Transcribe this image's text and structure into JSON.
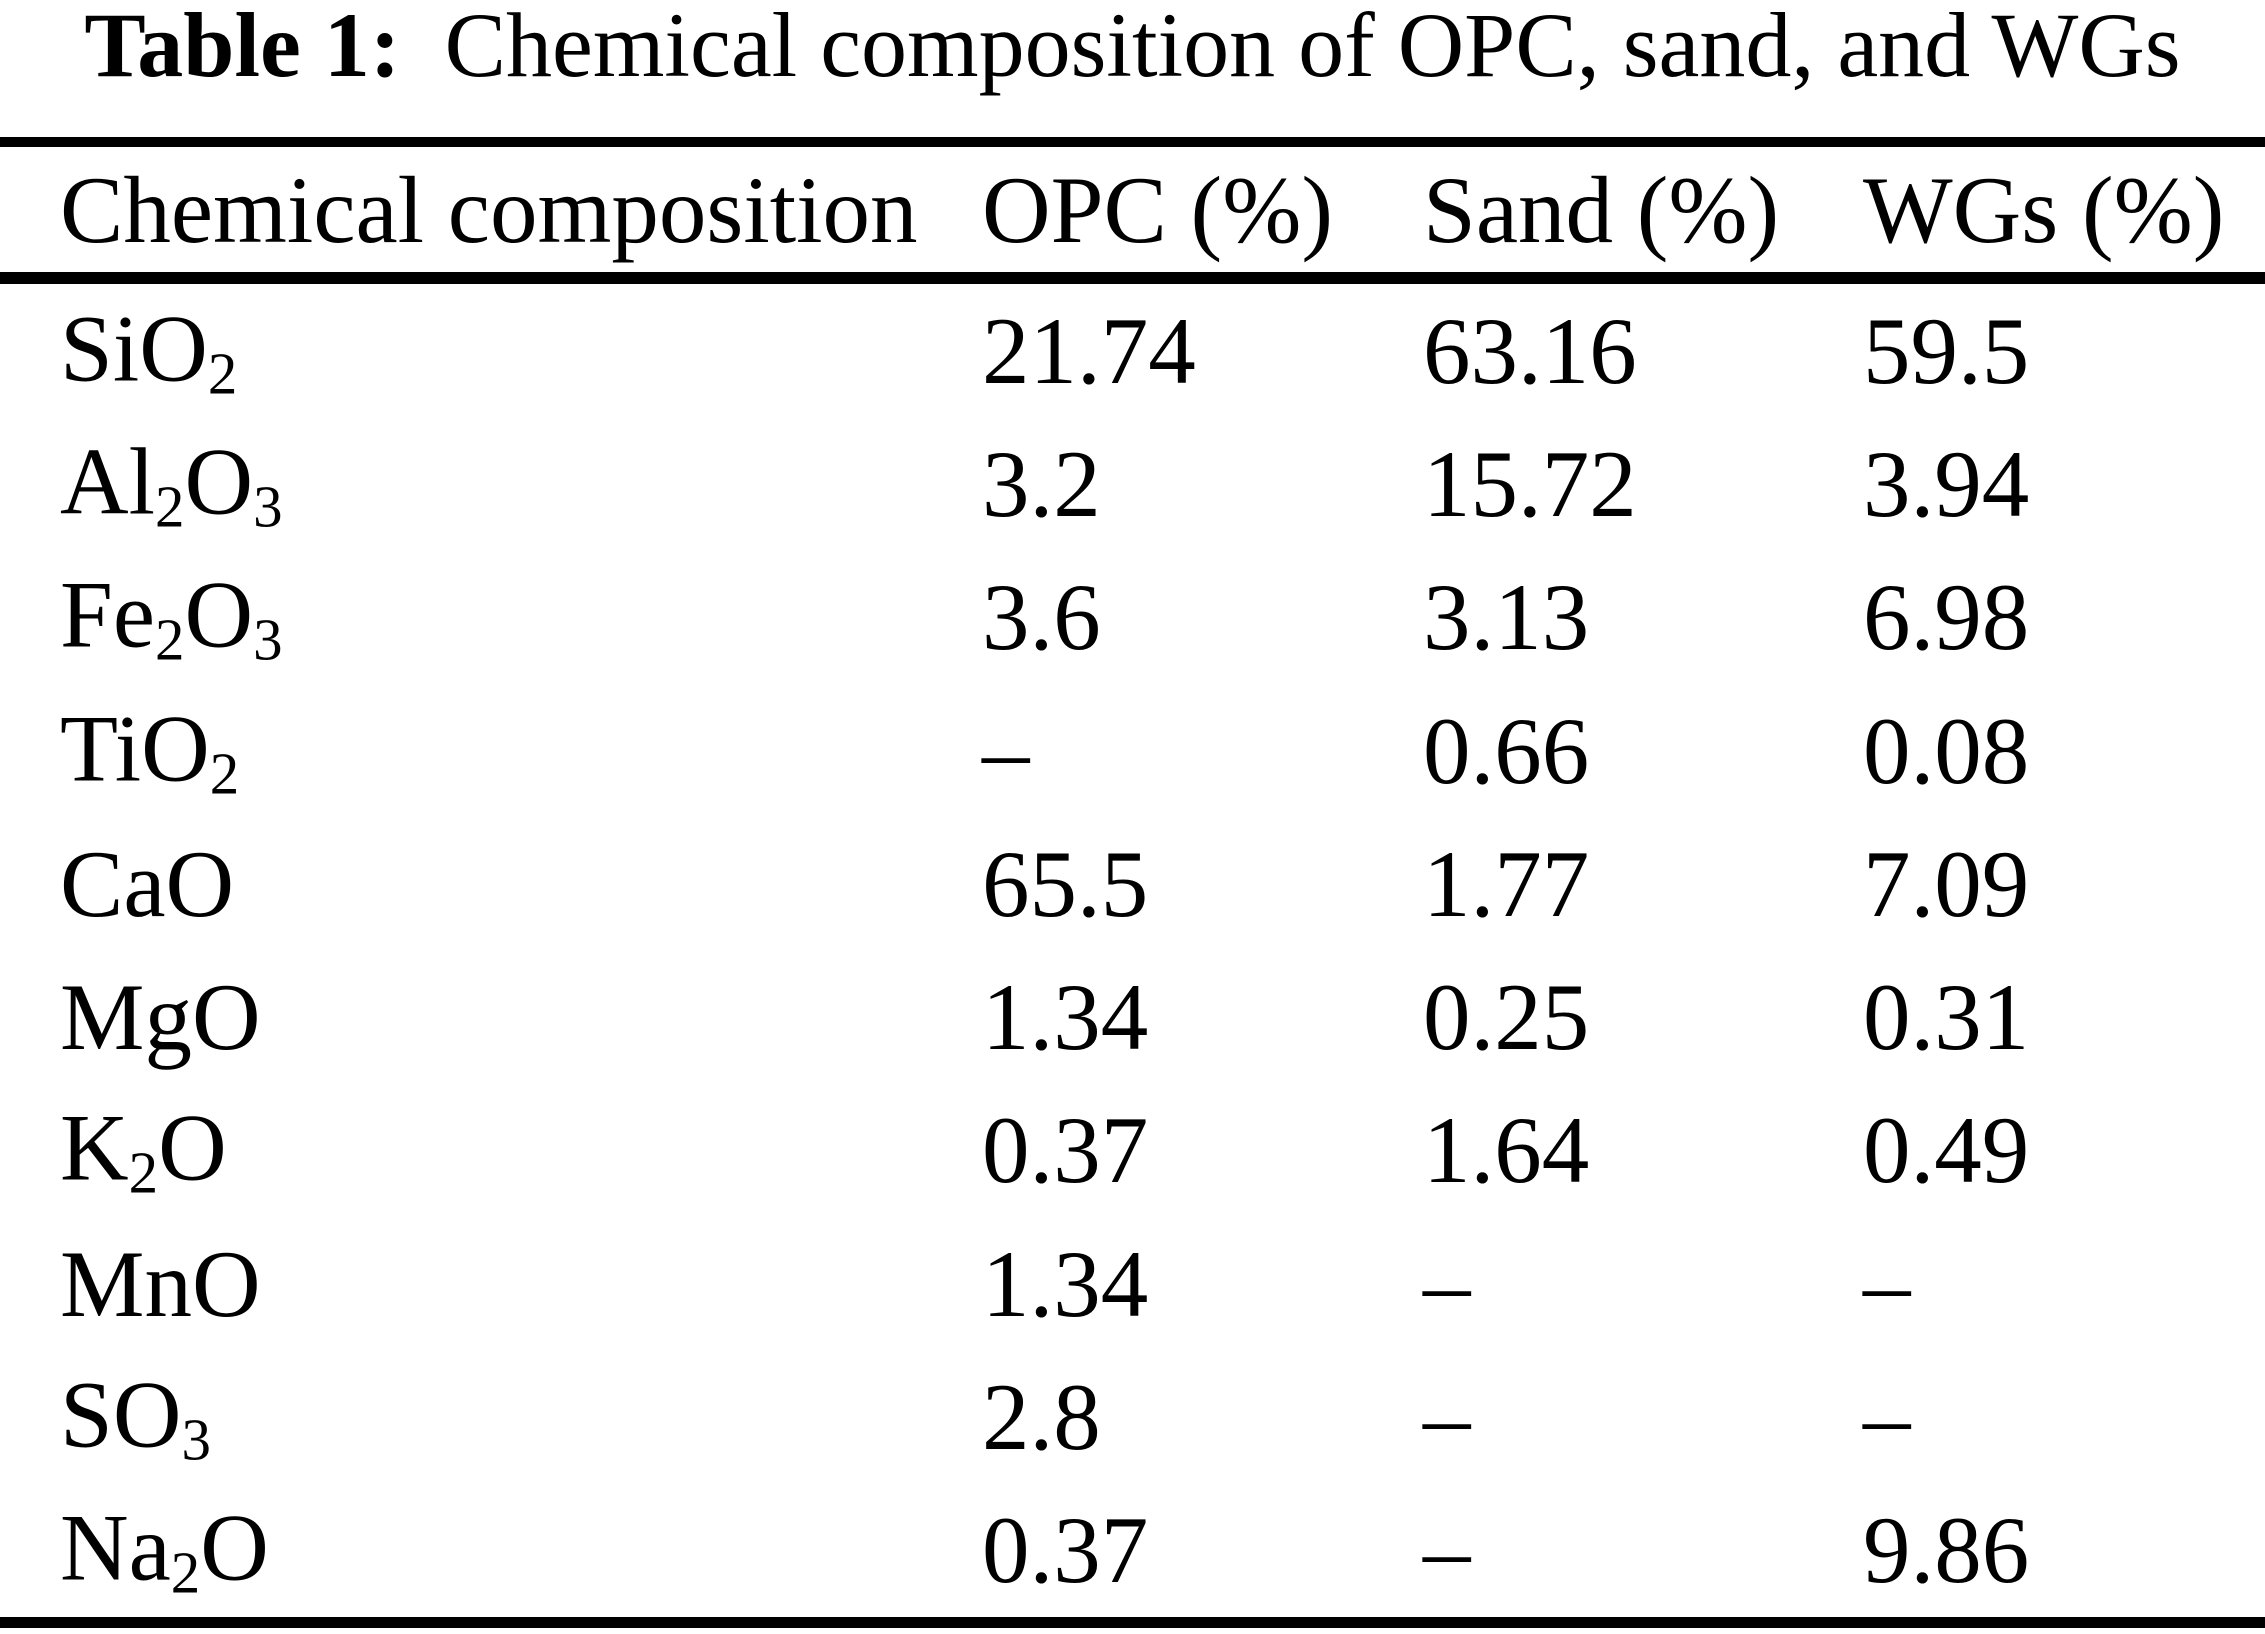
{
  "title": {
    "label": "Table 1:",
    "text": "Chemical composition of OPC, sand, and WGs"
  },
  "table": {
    "header": {
      "composition": "Chemical composition",
      "opc": "OPC (%)",
      "sand": "Sand (%)",
      "wgs": "WGs (%)"
    },
    "no_data_marker": "–",
    "rows": [
      {
        "name": "SiO2",
        "formula": [
          {
            "t": "SiO"
          },
          {
            "s": "2"
          }
        ],
        "opc": "21.74",
        "sand": "63.16",
        "wgs": "59.5"
      },
      {
        "name": "Al2O3",
        "formula": [
          {
            "t": "Al"
          },
          {
            "s": "2"
          },
          {
            "t": "O"
          },
          {
            "s": "3"
          }
        ],
        "opc": "3.2",
        "sand": "15.72",
        "wgs": "3.94"
      },
      {
        "name": "Fe2O3",
        "formula": [
          {
            "t": "Fe"
          },
          {
            "s": "2"
          },
          {
            "t": "O"
          },
          {
            "s": "3"
          }
        ],
        "opc": "3.6",
        "sand": "3.13",
        "wgs": "6.98"
      },
      {
        "name": "TiO2",
        "formula": [
          {
            "t": "TiO"
          },
          {
            "s": "2"
          }
        ],
        "opc": "–",
        "sand": "0.66",
        "wgs": "0.08"
      },
      {
        "name": "CaO",
        "formula": [
          {
            "t": "CaO"
          }
        ],
        "opc": "65.5",
        "sand": "1.77",
        "wgs": "7.09"
      },
      {
        "name": "MgO",
        "formula": [
          {
            "t": "MgO"
          }
        ],
        "opc": "1.34",
        "sand": "0.25",
        "wgs": "0.31"
      },
      {
        "name": "K2O",
        "formula": [
          {
            "t": "K"
          },
          {
            "s": "2"
          },
          {
            "t": "O"
          }
        ],
        "opc": "0.37",
        "sand": "1.64",
        "wgs": "0.49"
      },
      {
        "name": "MnO",
        "formula": [
          {
            "t": "MnO"
          }
        ],
        "opc": "1.34",
        "sand": "–",
        "wgs": "–"
      },
      {
        "name": "SO3",
        "formula": [
          {
            "t": "SO"
          },
          {
            "s": "3"
          }
        ],
        "opc": "2.8",
        "sand": "–",
        "wgs": "–"
      },
      {
        "name": "Na2O",
        "formula": [
          {
            "t": "Na"
          },
          {
            "s": "2"
          },
          {
            "t": "O"
          }
        ],
        "opc": "0.37",
        "sand": "–",
        "wgs": "9.86"
      }
    ]
  },
  "colors": {
    "background": "#ffffff",
    "text": "#000000",
    "rule": "#000000"
  }
}
